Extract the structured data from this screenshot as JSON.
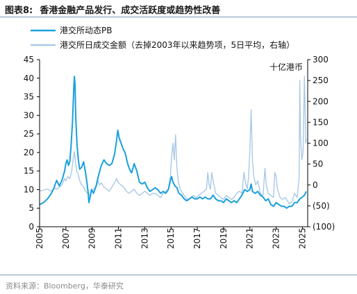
{
  "header": {
    "figure_label": "图表8:",
    "title": "香港金融产品发行、成交活跃度或趋势性改善"
  },
  "footer": {
    "source": "资料来源：Bloomberg，华泰研究"
  },
  "colors": {
    "pb": "#1aa0dc",
    "turnover": "#a9c9e6",
    "rule": "#7b9bb8"
  },
  "chart_data": {
    "type": "line",
    "unit_label": "十亿港币",
    "legend_position": "top-left",
    "grid": false,
    "x_ticks": [
      "2005",
      "2007",
      "2009",
      "2011",
      "2013",
      "2015",
      "2017",
      "2019",
      "2021",
      "2023",
      "2025"
    ],
    "xlim": [
      2005,
      2025.4
    ],
    "y_left": {
      "lim": [
        0,
        45
      ],
      "ticks": [
        "0",
        "5",
        "10",
        "15",
        "20",
        "25",
        "30",
        "35",
        "40",
        "45"
      ]
    },
    "y_right": {
      "lim": [
        -100,
        300
      ],
      "ticks": [
        "(100)",
        "(50)",
        "0",
        "50",
        "100",
        "150",
        "200",
        "250",
        "300"
      ]
    },
    "series": [
      {
        "name": "港交所动态PB",
        "axis": "left",
        "points": [
          [
            2005.0,
            6.0
          ],
          [
            2005.3,
            6.5
          ],
          [
            2005.6,
            7.5
          ],
          [
            2005.9,
            9.0
          ],
          [
            2006.1,
            10.5
          ],
          [
            2006.3,
            12.5
          ],
          [
            2006.5,
            11.0
          ],
          [
            2006.7,
            12.5
          ],
          [
            2006.9,
            15.0
          ],
          [
            2007.0,
            17.0
          ],
          [
            2007.1,
            18.0
          ],
          [
            2007.2,
            16.5
          ],
          [
            2007.3,
            17.5
          ],
          [
            2007.4,
            22.0
          ],
          [
            2007.5,
            28.0
          ],
          [
            2007.6,
            37.0
          ],
          [
            2007.65,
            40.5
          ],
          [
            2007.7,
            38.0
          ],
          [
            2007.75,
            30.0
          ],
          [
            2007.85,
            22.0
          ],
          [
            2007.95,
            18.0
          ],
          [
            2008.05,
            15.5
          ],
          [
            2008.2,
            16.0
          ],
          [
            2008.35,
            17.5
          ],
          [
            2008.5,
            14.5
          ],
          [
            2008.6,
            12.0
          ],
          [
            2008.7,
            9.0
          ],
          [
            2008.75,
            6.5
          ],
          [
            2008.85,
            8.0
          ],
          [
            2008.95,
            10.0
          ],
          [
            2009.1,
            9.0
          ],
          [
            2009.3,
            11.0
          ],
          [
            2009.5,
            14.0
          ],
          [
            2009.7,
            16.5
          ],
          [
            2009.9,
            18.0
          ],
          [
            2010.1,
            17.0
          ],
          [
            2010.3,
            16.5
          ],
          [
            2010.5,
            17.0
          ],
          [
            2010.7,
            19.5
          ],
          [
            2010.85,
            23.0
          ],
          [
            2010.95,
            26.0
          ],
          [
            2011.05,
            24.0
          ],
          [
            2011.2,
            22.5
          ],
          [
            2011.35,
            21.0
          ],
          [
            2011.5,
            20.0
          ],
          [
            2011.7,
            17.0
          ],
          [
            2011.85,
            15.5
          ],
          [
            2012.0,
            14.5
          ],
          [
            2012.2,
            17.0
          ],
          [
            2012.4,
            15.0
          ],
          [
            2012.6,
            12.0
          ],
          [
            2012.8,
            11.5
          ],
          [
            2013.0,
            12.0
          ],
          [
            2013.2,
            10.5
          ],
          [
            2013.4,
            9.5
          ],
          [
            2013.6,
            10.0
          ],
          [
            2013.8,
            10.5
          ],
          [
            2014.0,
            10.0
          ],
          [
            2014.2,
            9.0
          ],
          [
            2014.4,
            9.5
          ],
          [
            2014.6,
            9.0
          ],
          [
            2014.8,
            10.0
          ],
          [
            2014.95,
            12.5
          ],
          [
            2015.05,
            13.5
          ],
          [
            2015.15,
            12.0
          ],
          [
            2015.3,
            11.0
          ],
          [
            2015.45,
            10.5
          ],
          [
            2015.6,
            9.0
          ],
          [
            2015.8,
            8.5
          ],
          [
            2016.0,
            7.5
          ],
          [
            2016.2,
            7.0
          ],
          [
            2016.4,
            7.5
          ],
          [
            2016.6,
            8.0
          ],
          [
            2016.8,
            7.5
          ],
          [
            2017.0,
            7.5
          ],
          [
            2017.2,
            8.0
          ],
          [
            2017.4,
            7.5
          ],
          [
            2017.6,
            8.0
          ],
          [
            2017.8,
            7.5
          ],
          [
            2018.0,
            7.5
          ],
          [
            2018.2,
            8.5
          ],
          [
            2018.4,
            7.5
          ],
          [
            2018.6,
            7.0
          ],
          [
            2018.8,
            7.0
          ],
          [
            2019.0,
            6.5
          ],
          [
            2019.2,
            7.5
          ],
          [
            2019.4,
            7.0
          ],
          [
            2019.6,
            6.5
          ],
          [
            2019.8,
            7.0
          ],
          [
            2020.0,
            6.5
          ],
          [
            2020.2,
            7.5
          ],
          [
            2020.4,
            8.5
          ],
          [
            2020.6,
            10.0
          ],
          [
            2020.8,
            9.5
          ],
          [
            2021.0,
            10.0
          ],
          [
            2021.1,
            11.5
          ],
          [
            2021.2,
            9.5
          ],
          [
            2021.4,
            9.0
          ],
          [
            2021.6,
            9.5
          ],
          [
            2021.8,
            8.5
          ],
          [
            2022.0,
            8.0
          ],
          [
            2022.2,
            7.0
          ],
          [
            2022.4,
            7.5
          ],
          [
            2022.6,
            6.0
          ],
          [
            2022.8,
            5.5
          ],
          [
            2023.0,
            6.5
          ],
          [
            2023.2,
            6.0
          ],
          [
            2023.4,
            5.5
          ],
          [
            2023.6,
            5.5
          ],
          [
            2023.8,
            5.0
          ],
          [
            2024.0,
            5.5
          ],
          [
            2024.2,
            5.5
          ],
          [
            2024.4,
            6.5
          ],
          [
            2024.6,
            6.5
          ],
          [
            2024.8,
            7.5
          ],
          [
            2025.0,
            8.0
          ],
          [
            2025.15,
            8.5
          ],
          [
            2025.3,
            9.5
          ]
        ]
      },
      {
        "name": "港交所日成交金额（去掉2003年以来趋势项，5日平均，右轴）",
        "axis": "right",
        "points": [
          [
            2005.0,
            -15
          ],
          [
            2005.3,
            -12
          ],
          [
            2005.6,
            -10
          ],
          [
            2005.9,
            -15
          ],
          [
            2006.1,
            -8
          ],
          [
            2006.3,
            -10
          ],
          [
            2006.5,
            -5
          ],
          [
            2006.7,
            0
          ],
          [
            2006.9,
            15
          ],
          [
            2007.0,
            10
          ],
          [
            2007.15,
            20
          ],
          [
            2007.3,
            15
          ],
          [
            2007.45,
            35
          ],
          [
            2007.55,
            60
          ],
          [
            2007.65,
            80
          ],
          [
            2007.75,
            50
          ],
          [
            2007.85,
            30
          ],
          [
            2007.95,
            25
          ],
          [
            2008.05,
            10
          ],
          [
            2008.2,
            0
          ],
          [
            2008.35,
            -5
          ],
          [
            2008.5,
            -15
          ],
          [
            2008.65,
            -20
          ],
          [
            2008.8,
            -25
          ],
          [
            2008.95,
            -15
          ],
          [
            2009.1,
            -10
          ],
          [
            2009.3,
            -5
          ],
          [
            2009.45,
            10
          ],
          [
            2009.55,
            0
          ],
          [
            2009.7,
            5
          ],
          [
            2009.9,
            -5
          ],
          [
            2010.1,
            -10
          ],
          [
            2010.3,
            -15
          ],
          [
            2010.5,
            -5
          ],
          [
            2010.7,
            5
          ],
          [
            2010.85,
            15
          ],
          [
            2011.0,
            5
          ],
          [
            2011.2,
            0
          ],
          [
            2011.4,
            -5
          ],
          [
            2011.6,
            -15
          ],
          [
            2011.8,
            -20
          ],
          [
            2012.0,
            -15
          ],
          [
            2012.2,
            -10
          ],
          [
            2012.4,
            -20
          ],
          [
            2012.6,
            -25
          ],
          [
            2012.8,
            -20
          ],
          [
            2013.0,
            -15
          ],
          [
            2013.2,
            -20
          ],
          [
            2013.4,
            -25
          ],
          [
            2013.6,
            -20
          ],
          [
            2013.8,
            -20
          ],
          [
            2014.0,
            -25
          ],
          [
            2014.2,
            -30
          ],
          [
            2014.4,
            -20
          ],
          [
            2014.6,
            -15
          ],
          [
            2014.8,
            -10
          ],
          [
            2014.95,
            20
          ],
          [
            2015.05,
            70
          ],
          [
            2015.15,
            100
          ],
          [
            2015.25,
            60
          ],
          [
            2015.35,
            120
          ],
          [
            2015.45,
            40
          ],
          [
            2015.55,
            10
          ],
          [
            2015.7,
            -10
          ],
          [
            2015.9,
            -20
          ],
          [
            2016.1,
            -30
          ],
          [
            2016.3,
            -35
          ],
          [
            2016.5,
            -30
          ],
          [
            2016.7,
            -25
          ],
          [
            2016.9,
            -30
          ],
          [
            2017.1,
            -25
          ],
          [
            2017.3,
            -20
          ],
          [
            2017.5,
            -15
          ],
          [
            2017.7,
            -10
          ],
          [
            2017.8,
            30
          ],
          [
            2017.9,
            0
          ],
          [
            2018.0,
            -10
          ],
          [
            2018.1,
            30
          ],
          [
            2018.2,
            10
          ],
          [
            2018.4,
            -20
          ],
          [
            2018.6,
            -25
          ],
          [
            2018.8,
            -30
          ],
          [
            2019.0,
            -35
          ],
          [
            2019.2,
            -25
          ],
          [
            2019.4,
            -30
          ],
          [
            2019.6,
            -35
          ],
          [
            2019.8,
            -30
          ],
          [
            2020.0,
            -20
          ],
          [
            2020.2,
            -15
          ],
          [
            2020.4,
            -20
          ],
          [
            2020.55,
            30
          ],
          [
            2020.65,
            10
          ],
          [
            2020.8,
            -10
          ],
          [
            2020.9,
            20
          ],
          [
            2021.0,
            80
          ],
          [
            2021.1,
            180
          ],
          [
            2021.2,
            60
          ],
          [
            2021.3,
            20
          ],
          [
            2021.45,
            0
          ],
          [
            2021.6,
            10
          ],
          [
            2021.8,
            -20
          ],
          [
            2022.0,
            -25
          ],
          [
            2022.15,
            40
          ],
          [
            2022.25,
            0
          ],
          [
            2022.4,
            -20
          ],
          [
            2022.6,
            -25
          ],
          [
            2022.8,
            -30
          ],
          [
            2022.9,
            30
          ],
          [
            2023.0,
            20
          ],
          [
            2023.1,
            -10
          ],
          [
            2023.3,
            -30
          ],
          [
            2023.5,
            -35
          ],
          [
            2023.7,
            -30
          ],
          [
            2023.9,
            -40
          ],
          [
            2024.0,
            -45
          ],
          [
            2024.2,
            -40
          ],
          [
            2024.4,
            -20
          ],
          [
            2024.6,
            -30
          ],
          [
            2024.75,
            20
          ],
          [
            2024.8,
            250
          ],
          [
            2024.85,
            120
          ],
          [
            2024.95,
            60
          ],
          [
            2025.05,
            80
          ],
          [
            2025.15,
            260
          ],
          [
            2025.25,
            100
          ],
          [
            2025.3,
            110
          ]
        ]
      }
    ]
  }
}
